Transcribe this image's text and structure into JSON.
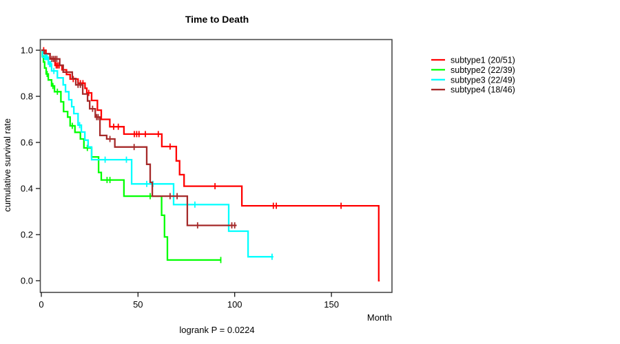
{
  "chart_data": {
    "type": "line",
    "subtype": "kaplan-meier-step",
    "title": "Time to Death",
    "xlabel": "Month",
    "ylabel": "cumulative survival rate",
    "annotation": "logrank P = 0.0224",
    "xlim": [
      0,
      181
    ],
    "ylim": [
      0.0,
      1.04
    ],
    "xticks": [
      0,
      50,
      100,
      150
    ],
    "yticks": [
      0.0,
      0.2,
      0.4,
      0.6,
      0.8,
      1.0
    ],
    "ytick_labels": [
      "0.0",
      "0.2",
      "0.4",
      "0.6",
      "0.8",
      "1.0"
    ],
    "grid": false,
    "legend_position": "right-outside",
    "series": [
      {
        "name": "subtype1 (20/51)",
        "color": "#FF0000",
        "end": 175,
        "steps": [
          [
            0,
            1.0
          ],
          [
            2.4,
            0.984
          ],
          [
            4.5,
            0.964
          ],
          [
            7.1,
            0.934
          ],
          [
            10.7,
            0.915
          ],
          [
            13,
            0.895
          ],
          [
            14.9,
            0.875
          ],
          [
            19,
            0.857
          ],
          [
            22.6,
            0.835
          ],
          [
            23.5,
            0.815
          ],
          [
            26,
            0.782
          ],
          [
            29,
            0.74
          ],
          [
            31,
            0.7
          ],
          [
            35.4,
            0.668
          ],
          [
            42.7,
            0.636
          ],
          [
            62.3,
            0.582
          ],
          [
            69.8,
            0.52
          ],
          [
            71.5,
            0.46
          ],
          [
            73.8,
            0.41
          ],
          [
            103.7,
            0.325
          ],
          [
            174.5,
            0.0
          ]
        ],
        "censors": [
          [
            1.2,
            1.0
          ],
          [
            7.7,
            0.934
          ],
          [
            8.4,
            0.934
          ],
          [
            9.2,
            0.934
          ],
          [
            16.5,
            0.875
          ],
          [
            20.2,
            0.857
          ],
          [
            21.5,
            0.857
          ],
          [
            24.5,
            0.815
          ],
          [
            37.4,
            0.668
          ],
          [
            39.8,
            0.668
          ],
          [
            48.1,
            0.636
          ],
          [
            49.3,
            0.636
          ],
          [
            50.5,
            0.636
          ],
          [
            53.8,
            0.636
          ],
          [
            60.5,
            0.636
          ],
          [
            66.6,
            0.582
          ],
          [
            89.8,
            0.41
          ],
          [
            120,
            0.325
          ],
          [
            121.5,
            0.325
          ],
          [
            155,
            0.325
          ]
        ]
      },
      {
        "name": "subtype2 (22/39)",
        "color": "#00FF00",
        "end": 93,
        "steps": [
          [
            0,
            1.0
          ],
          [
            0.5,
            0.974
          ],
          [
            1.1,
            0.949
          ],
          [
            1.7,
            0.923
          ],
          [
            2.5,
            0.897
          ],
          [
            3.6,
            0.871
          ],
          [
            5.3,
            0.845
          ],
          [
            6.8,
            0.82
          ],
          [
            10.1,
            0.776
          ],
          [
            11.5,
            0.734
          ],
          [
            13.6,
            0.71
          ],
          [
            14.9,
            0.672
          ],
          [
            17.4,
            0.644
          ],
          [
            20.2,
            0.615
          ],
          [
            22,
            0.576
          ],
          [
            26,
            0.537
          ],
          [
            29.6,
            0.47
          ],
          [
            31,
            0.437
          ],
          [
            42.7,
            0.367
          ],
          [
            62.2,
            0.284
          ],
          [
            63.7,
            0.19
          ],
          [
            65.2,
            0.09
          ]
        ],
        "censors": [
          [
            3,
            0.897
          ],
          [
            6,
            0.845
          ],
          [
            8.3,
            0.82
          ],
          [
            16,
            0.672
          ],
          [
            23.8,
            0.576
          ],
          [
            34,
            0.437
          ],
          [
            35.5,
            0.437
          ],
          [
            56.3,
            0.367
          ],
          [
            92.8,
            0.09
          ]
        ]
      },
      {
        "name": "subtype3 (22/49)",
        "color": "#00FFFF",
        "end": 120,
        "steps": [
          [
            0,
            1.0
          ],
          [
            0.6,
            0.97
          ],
          [
            3.6,
            0.94
          ],
          [
            5.3,
            0.91
          ],
          [
            8.3,
            0.88
          ],
          [
            11.3,
            0.85
          ],
          [
            12.5,
            0.82
          ],
          [
            14.2,
            0.785
          ],
          [
            15.7,
            0.755
          ],
          [
            16.8,
            0.725
          ],
          [
            19,
            0.675
          ],
          [
            20.7,
            0.645
          ],
          [
            22.5,
            0.61
          ],
          [
            24.2,
            0.58
          ],
          [
            26,
            0.525
          ],
          [
            46.7,
            0.42
          ],
          [
            68.4,
            0.33
          ],
          [
            96.9,
            0.215
          ],
          [
            106.9,
            0.104
          ]
        ],
        "censors": [
          [
            1.8,
            0.97
          ],
          [
            2.4,
            0.97
          ],
          [
            3.0,
            0.97
          ],
          [
            4.3,
            0.94
          ],
          [
            4.9,
            0.94
          ],
          [
            6.5,
            0.91
          ],
          [
            19.8,
            0.675
          ],
          [
            33,
            0.525
          ],
          [
            44,
            0.525
          ],
          [
            54.5,
            0.42
          ],
          [
            57.7,
            0.42
          ],
          [
            79.4,
            0.33
          ],
          [
            119.3,
            0.104
          ]
        ]
      },
      {
        "name": "subtype4 (18/46)",
        "color": "#A52A2A",
        "end": 101,
        "steps": [
          [
            0,
            1.0
          ],
          [
            1.5,
            0.985
          ],
          [
            4.5,
            0.962
          ],
          [
            9.5,
            0.935
          ],
          [
            11.3,
            0.905
          ],
          [
            16,
            0.877
          ],
          [
            17.8,
            0.85
          ],
          [
            21.4,
            0.81
          ],
          [
            23.9,
            0.78
          ],
          [
            25,
            0.746
          ],
          [
            27.9,
            0.71
          ],
          [
            30.3,
            0.63
          ],
          [
            33.8,
            0.615
          ],
          [
            38,
            0.58
          ],
          [
            54.5,
            0.505
          ],
          [
            56.3,
            0.427
          ],
          [
            57.4,
            0.367
          ],
          [
            75.5,
            0.24
          ]
        ],
        "censors": [
          [
            5.5,
            0.962
          ],
          [
            6.3,
            0.962
          ],
          [
            7.2,
            0.962
          ],
          [
            8.0,
            0.962
          ],
          [
            19,
            0.85
          ],
          [
            20.2,
            0.85
          ],
          [
            26.5,
            0.746
          ],
          [
            28.6,
            0.71
          ],
          [
            29.4,
            0.71
          ],
          [
            35.5,
            0.615
          ],
          [
            48,
            0.58
          ],
          [
            66.6,
            0.367
          ],
          [
            70.2,
            0.367
          ],
          [
            80.8,
            0.24
          ],
          [
            98.5,
            0.24
          ],
          [
            100,
            0.24
          ]
        ]
      }
    ]
  }
}
